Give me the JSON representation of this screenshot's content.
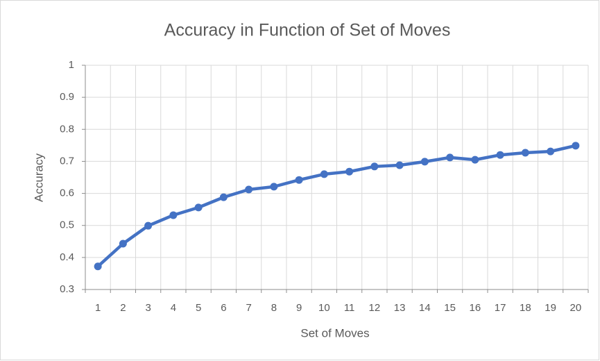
{
  "chart_data": {
    "type": "line",
    "title": "Accuracy in Function of Set of Moves",
    "x_label": "Set of Moves",
    "y_label": "Accuracy",
    "categories": [
      "1",
      "2",
      "3",
      "4",
      "5",
      "6",
      "7",
      "8",
      "9",
      "10",
      "11",
      "12",
      "13",
      "14",
      "15",
      "16",
      "17",
      "18",
      "19",
      "20"
    ],
    "series": [
      {
        "name": "Accuracy",
        "color": "#4472c4",
        "values": [
          0.372,
          0.443,
          0.499,
          0.532,
          0.556,
          0.588,
          0.612,
          0.621,
          0.642,
          0.66,
          0.668,
          0.684,
          0.688,
          0.699,
          0.712,
          0.705,
          0.72,
          0.727,
          0.731,
          0.749
        ]
      }
    ],
    "ylim": [
      0.3,
      1
    ],
    "yticks": [
      0.3,
      0.4,
      0.5,
      0.6,
      0.7,
      0.8,
      0.9,
      1
    ],
    "grid": true
  }
}
